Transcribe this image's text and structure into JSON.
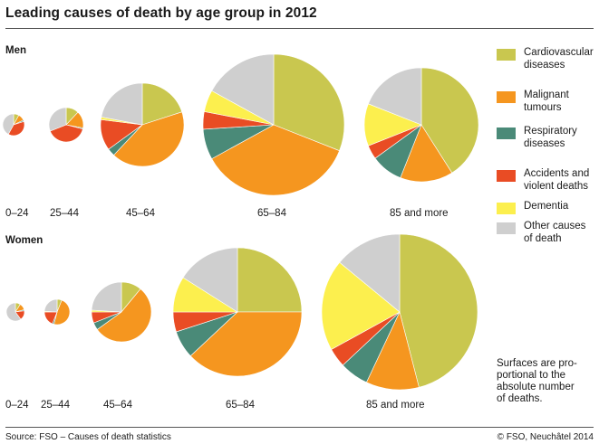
{
  "title": "Leading causes of death by age group in 2012",
  "source": "Source: FSO – Causes of death statistics",
  "copyright": "© FSO, Neuchâtel 2014",
  "note": "Surfaces are pro-\nportional to the\nabsolute number\nof deaths.",
  "legend": [
    {
      "key": "cardio",
      "label": "Cardiovascular\ndiseases",
      "color": "#c9c74f"
    },
    {
      "key": "cancer",
      "label": "Malignant\ntumours",
      "color": "#f5961f"
    },
    {
      "key": "resp",
      "label": "Respiratory\ndiseases",
      "color": "#4a8a78"
    },
    {
      "key": "accident",
      "label": "Accidents and\nviolent deaths",
      "color": "#e94c24"
    },
    {
      "key": "dementia",
      "label": "Dementia",
      "color": "#fcef4e"
    },
    {
      "key": "other",
      "label": "Other causes\nof death",
      "color": "#cfcfcf"
    }
  ],
  "chart_data": {
    "type": "pie",
    "series_order": [
      "cardio",
      "cancer",
      "resp",
      "accident",
      "dementia",
      "other"
    ],
    "panels": [
      {
        "name": "Men",
        "groups": [
          {
            "label": "0–24",
            "values": {
              "cardio": 8,
              "cancer": 10,
              "resp": 2,
              "accident": 38,
              "dementia": 0,
              "other": 42
            }
          },
          {
            "label": "25–44",
            "values": {
              "cardio": 12,
              "cancer": 16,
              "resp": 1,
              "accident": 40,
              "dementia": 0,
              "other": 31
            }
          },
          {
            "label": "45–64",
            "values": {
              "cardio": 20,
              "cancer": 42,
              "resp": 3,
              "accident": 12,
              "dementia": 1,
              "other": 22
            }
          },
          {
            "label": "65–84",
            "values": {
              "cardio": 31,
              "cancer": 36,
              "resp": 7,
              "accident": 4,
              "dementia": 5,
              "other": 17
            }
          },
          {
            "label": "85 and more",
            "values": {
              "cardio": 41,
              "cancer": 15,
              "resp": 9,
              "accident": 4,
              "dementia": 12,
              "other": 19
            }
          }
        ]
      },
      {
        "name": "Women",
        "groups": [
          {
            "label": "0–24",
            "values": {
              "cardio": 9,
              "cancer": 12,
              "resp": 2,
              "accident": 17,
              "dementia": 0,
              "other": 60
            }
          },
          {
            "label": "25–44",
            "values": {
              "cardio": 6,
              "cancer": 48,
              "resp": 2,
              "accident": 19,
              "dementia": 1,
              "other": 24
            }
          },
          {
            "label": "45–64",
            "values": {
              "cardio": 11,
              "cancer": 54,
              "resp": 4,
              "accident": 6,
              "dementia": 1,
              "other": 24
            }
          },
          {
            "label": "65–84",
            "values": {
              "cardio": 25,
              "cancer": 38,
              "resp": 7,
              "accident": 5,
              "dementia": 9,
              "other": 16
            }
          },
          {
            "label": "85 and more",
            "values": {
              "cardio": 46,
              "cancer": 11,
              "resp": 6,
              "accident": 4,
              "dementia": 19,
              "other": 14
            }
          }
        ]
      }
    ]
  }
}
